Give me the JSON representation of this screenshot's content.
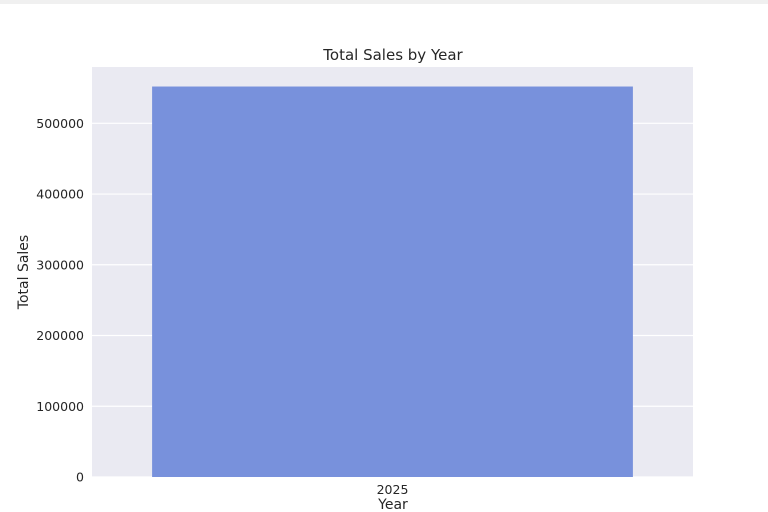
{
  "chart_data": {
    "type": "bar",
    "title": "Total Sales by Year",
    "xlabel": "Year",
    "ylabel": "Total Sales",
    "categories": [
      "2025"
    ],
    "values": [
      552000
    ],
    "ylim": [
      0,
      579600
    ],
    "yticks": [
      0,
      100000,
      200000,
      300000,
      400000,
      500000
    ],
    "ytick_labels": [
      "0",
      "100000",
      "200000",
      "300000",
      "400000",
      "500000"
    ],
    "grid": "horizontal",
    "colors": {
      "bar": "#7891dc",
      "plot_background": "#eaeaf2",
      "grid": "#ffffff"
    }
  }
}
